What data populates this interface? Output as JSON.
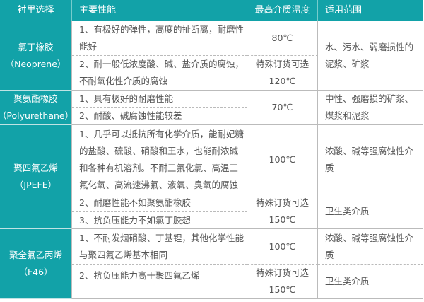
{
  "header": [
    "衬里选择",
    "主要性能",
    "最高介质温度",
    "适用范围"
  ],
  "rows": [
    {
      "lining": [
        "氯丁橡胶",
        "（Neoprene）"
      ],
      "props": [
        [
          "1、有极好的弹性，高度的扯断离，耐磨性",
          "能好"
        ],
        [
          "2、耐一般低浓度酸、碱、盐介质的腐蚀，",
          "不耐氧化性介质的腐蚀"
        ]
      ],
      "temp": [
        [
          "80℃"
        ],
        [
          "特殊订货可选",
          "120℃"
        ]
      ],
      "scope": [
        [
          "水、污水、弱磨损性的",
          "泥浆、矿浆"
        ]
      ]
    },
    {
      "lining": [
        "聚氨酯橡胶",
        "（Polyurethane）"
      ],
      "props": [
        [
          "1、具有极好的耐磨性能"
        ],
        [
          "2、耐酸、碱腐蚀性能较差"
        ]
      ],
      "temp": [
        [
          "70℃"
        ]
      ],
      "scope": [
        [
          "中性、强磨损的矿浆、",
          "煤浆和泥浆"
        ]
      ]
    },
    {
      "lining": [
        "聚四氟乙烯",
        "（JPEFE）"
      ],
      "props": [
        [
          "1、几乎可以抵抗所有化学介质，能耐妃糖",
          "的盐酸、硫酸、硝酸和王水，也能耐浓碱",
          "和各种有机溶剂。不耐三氟化氯、高温三",
          "氟化氧、高流速沸氟、液氧、臭氧的腐蚀"
        ],
        [
          "2、耐磨性能不如聚氨酯橡胶"
        ],
        [
          "3、抗负压能力不如氯丁胶想"
        ]
      ],
      "temp": [
        [
          "100℃"
        ],
        [
          "特殊订货可选",
          "150℃"
        ]
      ],
      "scope": [
        [
          "浓酸、碱等强腐蚀性介",
          "质"
        ],
        [
          "卫生类介质"
        ]
      ]
    },
    {
      "lining": [
        "聚全氟乙丙烯",
        "（F46）"
      ],
      "props": [
        [
          "1、不耐发烟硝酸、丁基锂，其他化学性能",
          "与聚四氟乙烯基本相同"
        ],
        [
          "2、抗负压能力高于聚四氟乙烯"
        ]
      ],
      "temp": [
        [
          "100℃"
        ],
        [
          "特殊订货可选",
          "150℃"
        ]
      ],
      "scope": [
        [
          "浓酸、碱等强腐蚀性介",
          "质"
        ],
        [
          "卫生类介质"
        ]
      ]
    }
  ]
}
